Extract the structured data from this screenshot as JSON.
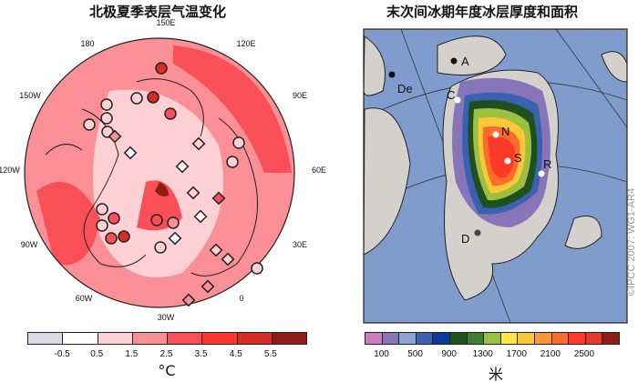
{
  "left_panel": {
    "title": "北极夏季表层气温变化",
    "longitude_labels": [
      "150E",
      "120E",
      "90E",
      "60E",
      "30E",
      "0",
      "30W",
      "60W",
      "90W",
      "120W",
      "150W",
      "180"
    ],
    "colorbar": {
      "ticks": [
        "-0.5",
        "0.5",
        "1.5",
        "2.5",
        "3.5",
        "4.5",
        "5.5"
      ],
      "colors": [
        "#dcd9e8",
        "#ffffff",
        "#ffd0d4",
        "#fb8f96",
        "#f95058",
        "#fd352c",
        "#d92c24",
        "#901c16"
      ],
      "unit": "°C"
    }
  },
  "right_panel": {
    "title": "末次间冰期年度冰层厚度和面积",
    "site_labels": [
      "A",
      "De",
      "C",
      "N",
      "S",
      "R",
      "D"
    ],
    "colorbar": {
      "ticks": [
        "100",
        "500",
        "900",
        "1300",
        "1700",
        "2100",
        "2500"
      ],
      "colors": [
        "#cc7cc0",
        "#8874b8",
        "#8aa4d0",
        "#3a62b0",
        "#0a3a9a",
        "#1e5020",
        "#3a8030",
        "#9ec040",
        "#fce840",
        "#fcc838",
        "#fc9830",
        "#fc6a2c",
        "#fc3a28",
        "#e83828",
        "#901c16"
      ],
      "unit": "米"
    }
  },
  "credit": "©IPCC 2007: WG1-AR4"
}
